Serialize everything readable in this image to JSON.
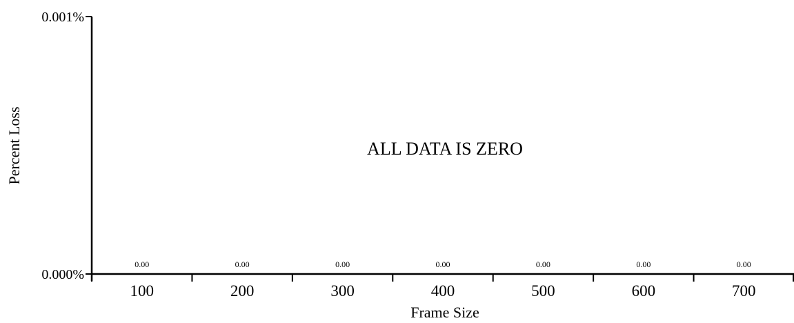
{
  "chart_data": {
    "type": "bar",
    "title": "",
    "xlabel": "Frame Size",
    "ylabel": "Percent Loss",
    "categories": [
      "100",
      "200",
      "300",
      "400",
      "500",
      "600",
      "700"
    ],
    "values": [
      0,
      0,
      0,
      0,
      0,
      0,
      0
    ],
    "data_labels": [
      "0.00",
      "0.00",
      "0.00",
      "0.00",
      "0.00",
      "0.00",
      "0.00"
    ],
    "ylim": [
      0,
      0.001
    ],
    "ytick_labels": [
      "0.000%",
      "0.001%"
    ],
    "annotation": "ALL DATA IS ZERO",
    "grid": false,
    "legend": "none",
    "colors": {
      "axis": "#000000",
      "text": "#000000",
      "background": "#ffffff"
    }
  }
}
